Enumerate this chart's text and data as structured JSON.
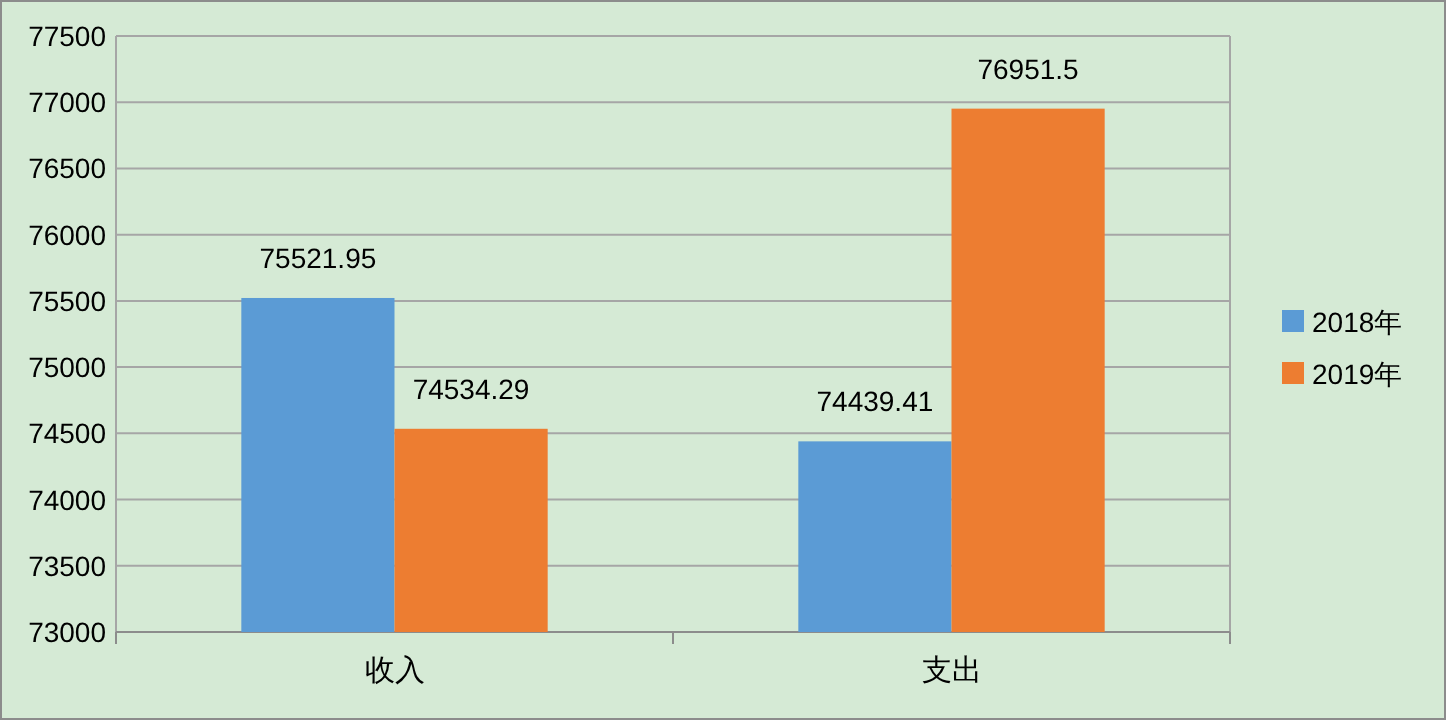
{
  "chart_data": {
    "type": "bar",
    "categories": [
      "收入",
      "支出"
    ],
    "series": [
      {
        "name": "2018年",
        "color": "#5b9bd5",
        "values": [
          75521.95,
          74439.41
        ]
      },
      {
        "name": "2019年",
        "color": "#ed7d31",
        "values": [
          74534.29,
          76951.5
        ]
      }
    ],
    "ylim": [
      73000,
      77500
    ],
    "yticks": [
      73000,
      73500,
      74000,
      74500,
      75000,
      75500,
      76000,
      76500,
      77000,
      77500
    ],
    "grid": "y",
    "legend": "right",
    "data_labels": true
  }
}
